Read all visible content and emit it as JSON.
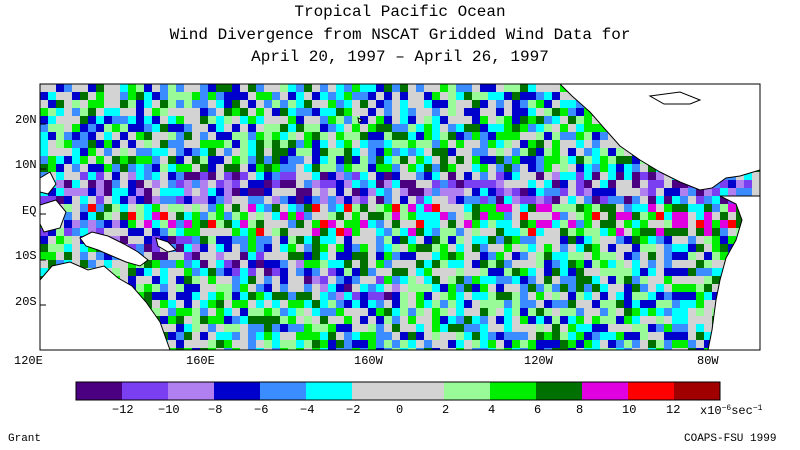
{
  "title": {
    "line1": "Tropical Pacific Ocean",
    "line2": "Wind Divergence from NSCAT Gridded Wind Data for",
    "line3": "April 20, 1997 – April 26, 1997"
  },
  "map": {
    "lat_labels": [
      "20N",
      "10N",
      "EQ",
      "10S",
      "20S"
    ],
    "lon_labels": [
      "120E",
      "160E",
      "160W",
      "120W",
      "80W"
    ],
    "lat_range": [
      -30,
      30
    ],
    "lon_range": [
      120,
      285
    ]
  },
  "colorbar": {
    "colors": [
      "#4b0082",
      "#7b3ff2",
      "#b080f0",
      "#0000cd",
      "#3a8cff",
      "#00ffff",
      "#d3d3d3",
      "#d3d3d3",
      "#98fb98",
      "#00ee00",
      "#007000",
      "#e000e0",
      "#ff0000",
      "#a00000"
    ],
    "tick_labels": [
      "−12",
      "−10",
      "−8",
      "−6",
      "−4",
      "−2",
      "0",
      "2",
      "4",
      "6",
      "8",
      "10",
      "12"
    ],
    "units_base": "x10",
    "units_exp": "−6",
    "units_suffix": "sec",
    "units_suffix_exp": "−1"
  },
  "footer": {
    "left": "Grant",
    "right": "COAPS-FSU 1999"
  }
}
